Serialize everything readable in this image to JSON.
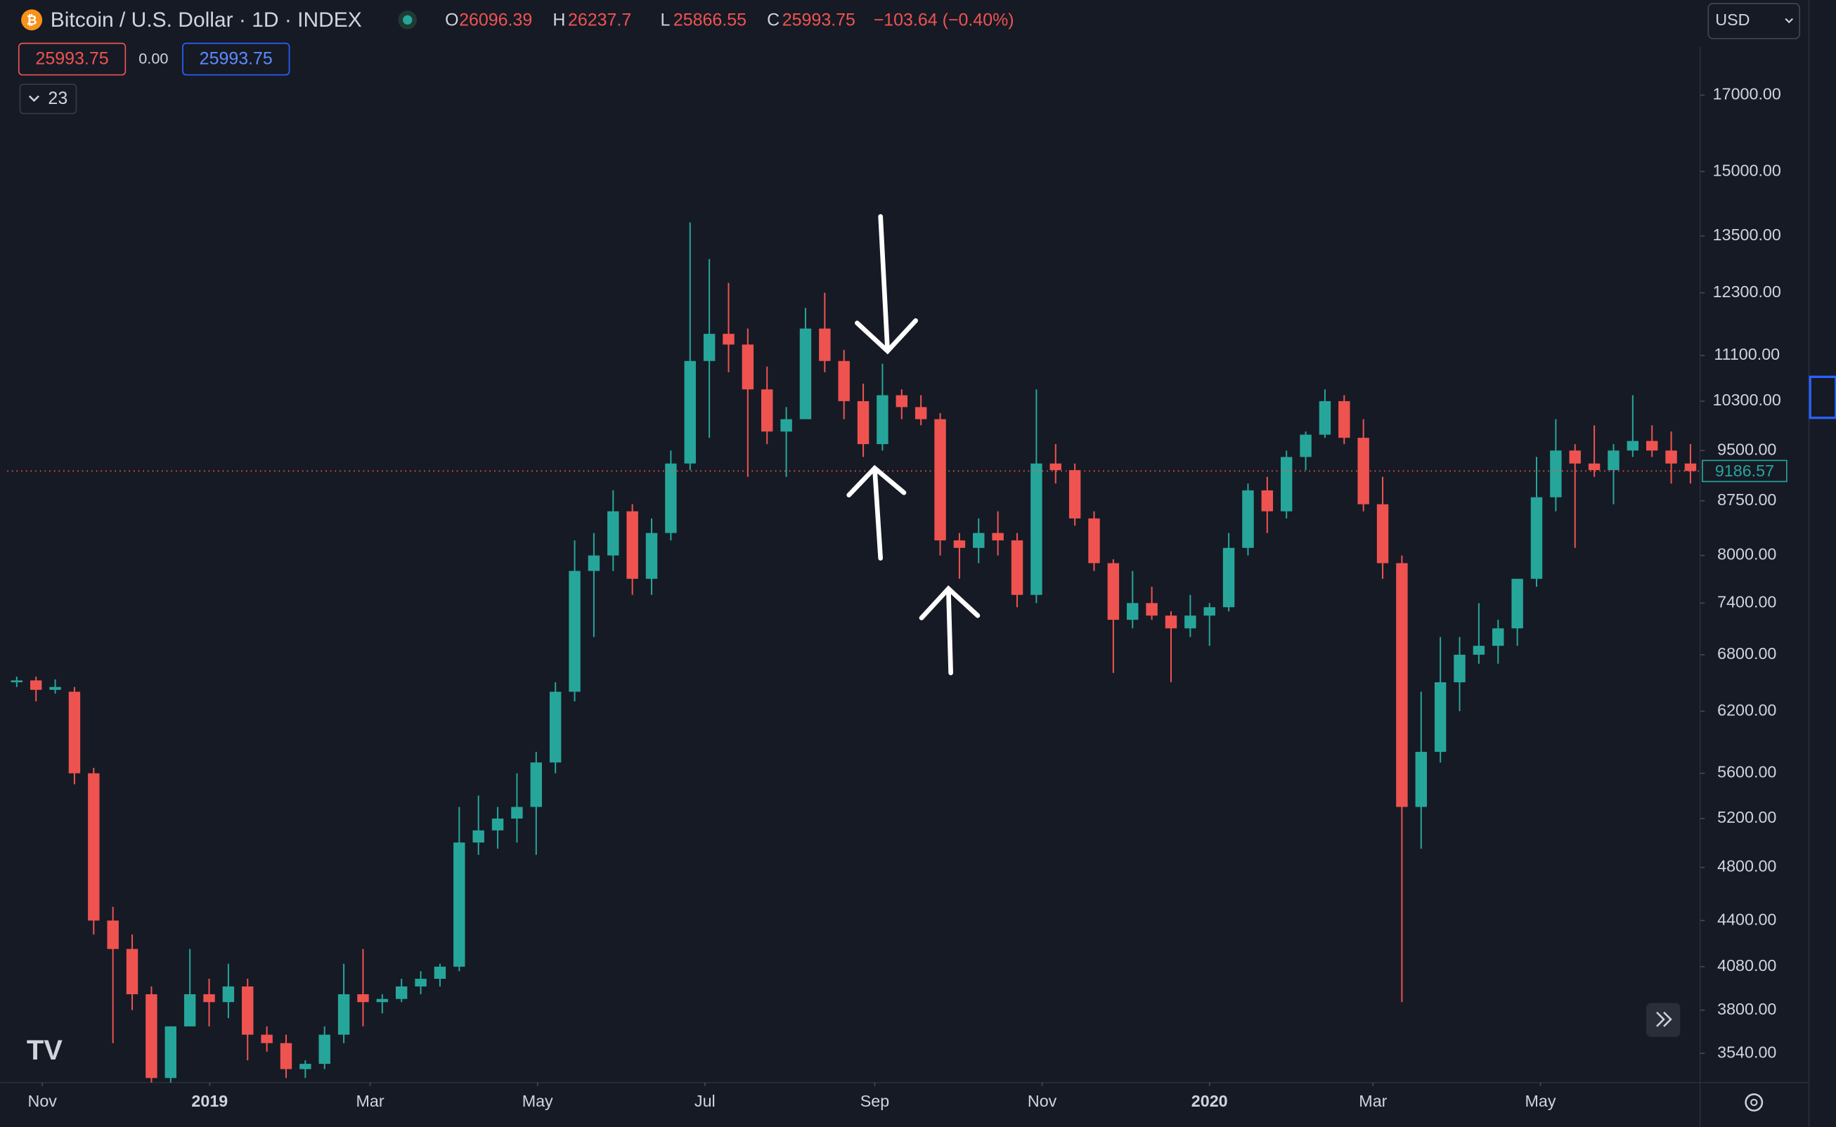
{
  "header": {
    "symbol": "Bitcoin / U.S. Dollar · 1D · INDEX",
    "open_label": "O",
    "open": 26096.39,
    "high_label": "H",
    "high": 26237.7,
    "low_label": "L",
    "low": 25866.55,
    "close_label": "C",
    "close": 25993.75,
    "change": "−103.64 (−0.40%)",
    "sell": 25993.75,
    "spread": "0.00",
    "buy": 25993.75,
    "indicators": "23",
    "currency": "USD"
  },
  "chart_data": {
    "type": "candlestick",
    "categories": [
      null,
      null,
      null,
      null,
      null,
      null,
      null,
      null,
      null,
      null,
      null,
      null,
      null,
      null,
      null,
      null,
      null,
      null,
      null,
      null,
      null,
      null,
      null,
      null,
      null,
      null,
      null,
      null,
      null,
      null,
      null,
      null,
      null,
      null,
      null,
      null,
      null,
      null,
      null,
      null,
      null,
      null,
      null,
      null,
      null,
      null,
      null,
      null,
      null,
      null,
      null,
      null,
      null,
      null,
      null,
      null,
      null,
      null,
      null,
      null,
      null,
      null,
      null,
      null,
      null,
      null,
      null,
      null,
      null,
      null,
      null,
      null,
      null,
      null,
      null,
      null,
      null,
      null,
      null,
      null,
      null,
      null,
      null,
      null,
      null,
      null,
      null,
      null
    ],
    "series": {
      "open": [
        6500,
        6520,
        6420,
        6400,
        5600,
        4400,
        4200,
        3900,
        3400,
        3700,
        3900,
        3850,
        3950,
        3650,
        3600,
        3450,
        3480,
        3650,
        3900,
        3850,
        3870,
        3950,
        4000,
        4080,
        5000,
        5100,
        5200,
        5300,
        5700,
        6400,
        7800,
        8000,
        8600,
        7700,
        8300,
        9300,
        11000,
        11500,
        11300,
        10500,
        9800,
        10000,
        11600,
        11000,
        10300,
        9600,
        10400,
        10200,
        10000,
        8200,
        8100,
        8300,
        8200,
        7500,
        9300,
        9200,
        8500,
        7900,
        7200,
        7400,
        7250,
        7100,
        7250,
        7350,
        8100,
        8900,
        8600,
        9400,
        9750,
        10300,
        9700,
        8700,
        7900,
        5300,
        5800,
        6500,
        6800,
        6900,
        7100,
        7700,
        8800,
        9500,
        9300,
        9200,
        9500,
        9650,
        9500,
        9300
      ],
      "high": [
        6560,
        6560,
        6530,
        6450,
        5650,
        4500,
        4300,
        3950,
        3700,
        4200,
        4000,
        4100,
        4000,
        3700,
        3650,
        3500,
        3700,
        4100,
        4200,
        3900,
        4000,
        4050,
        4100,
        5300,
        5400,
        5300,
        5600,
        5800,
        6500,
        8200,
        8300,
        8900,
        8700,
        8500,
        9500,
        13800,
        13000,
        12500,
        11600,
        10900,
        10200,
        12000,
        12300,
        11200,
        10600,
        10950,
        10500,
        10400,
        10100,
        8300,
        8500,
        8600,
        8300,
        10500,
        9600,
        9300,
        8600,
        7950,
        7800,
        7600,
        7300,
        7500,
        7400,
        8300,
        9000,
        9100,
        9500,
        9800,
        10500,
        10400,
        10000,
        9100,
        8000,
        6400,
        7000,
        7000,
        7400,
        7200,
        7700,
        9400,
        10000,
        9600,
        9900,
        9600,
        10400,
        9900,
        9800,
        9600
      ],
      "low": [
        6450,
        6300,
        6380,
        5500,
        4300,
        3600,
        3800,
        3300,
        3200,
        3700,
        3700,
        3750,
        3500,
        3550,
        3400,
        3400,
        3450,
        3600,
        3700,
        3780,
        3850,
        3900,
        3950,
        4050,
        4900,
        4950,
        5000,
        4900,
        5600,
        6300,
        7000,
        7800,
        7500,
        7500,
        8200,
        9200,
        9700,
        10800,
        9100,
        9600,
        9100,
        10000,
        10800,
        10000,
        9400,
        9500,
        10000,
        9900,
        8000,
        7700,
        7900,
        8000,
        7350,
        7400,
        9000,
        8400,
        7800,
        6600,
        7100,
        7200,
        6500,
        7000,
        6900,
        7300,
        8000,
        8300,
        8500,
        9200,
        9700,
        9600,
        8600,
        7700,
        3850,
        4950,
        5700,
        6200,
        6700,
        6700,
        6900,
        7600,
        8600,
        8100,
        9100,
        8700,
        9400,
        9400,
        9000,
        9000
      ],
      "close": [
        6520,
        6420,
        6450,
        5600,
        4400,
        4200,
        3900,
        3400,
        3700,
        3900,
        3850,
        3950,
        3650,
        3600,
        3450,
        3480,
        3650,
        3900,
        3850,
        3870,
        3950,
        4000,
        4080,
        5000,
        5100,
        5200,
        5300,
        5700,
        6400,
        7800,
        8000,
        8600,
        7700,
        8300,
        9300,
        11000,
        11500,
        11300,
        10500,
        9800,
        10000,
        11600,
        11000,
        10300,
        9600,
        10400,
        10200,
        10000,
        8200,
        8100,
        8300,
        8200,
        7500,
        9300,
        9200,
        8500,
        7900,
        7200,
        7400,
        7250,
        7100,
        7250,
        7350,
        8100,
        8900,
        8600,
        9400,
        9750,
        10300,
        9700,
        8700,
        7900,
        5300,
        5800,
        6500,
        6800,
        6900,
        7100,
        7700,
        8800,
        9500,
        9300,
        9200,
        9500,
        9650,
        9500,
        9300,
        9186.57
      ]
    },
    "up_color": "#26a69a",
    "down_color": "#ef5350",
    "log_scale": true,
    "xlim": [
      0,
      88
    ],
    "ylim": [
      3375,
      18400
    ],
    "xticks": [
      {
        "value": 1.83,
        "label": "Nov"
      },
      {
        "value": 10.53,
        "label": "2019"
      },
      {
        "value": 18.87,
        "label": "Mar"
      },
      {
        "value": 27.57,
        "label": "May"
      },
      {
        "value": 36.27,
        "label": "Jul"
      },
      {
        "value": 45.1,
        "label": "Sep"
      },
      {
        "value": 53.8,
        "label": "Nov"
      },
      {
        "value": 62.5,
        "label": "2020"
      },
      {
        "value": 71.0,
        "label": "Mar"
      },
      {
        "value": 79.7,
        "label": "May"
      }
    ],
    "yticks": [
      {
        "value": 3540,
        "label": "3540.00"
      },
      {
        "value": 3800,
        "label": "3800.00"
      },
      {
        "value": 4080,
        "label": "4080.00"
      },
      {
        "value": 4400,
        "label": "4400.00"
      },
      {
        "value": 4800,
        "label": "4800.00"
      },
      {
        "value": 5200,
        "label": "5200.00"
      },
      {
        "value": 5600,
        "label": "5600.00"
      },
      {
        "value": 6200,
        "label": "6200.00"
      },
      {
        "value": 6800,
        "label": "6800.00"
      },
      {
        "value": 7400,
        "label": "7400.00"
      },
      {
        "value": 8000,
        "label": "8000.00"
      },
      {
        "value": 8750,
        "label": "8750.00"
      },
      {
        "value": 9500,
        "label": "9500.00"
      },
      {
        "value": 10300,
        "label": "10300.00"
      },
      {
        "value": 11100,
        "label": "11100.00"
      },
      {
        "value": 12300,
        "label": "12300.00"
      },
      {
        "value": 13500,
        "label": "13500.00"
      },
      {
        "value": 15000,
        "label": "15000.00"
      },
      {
        "value": 17000,
        "label": "17000.00"
      }
    ]
  }
}
